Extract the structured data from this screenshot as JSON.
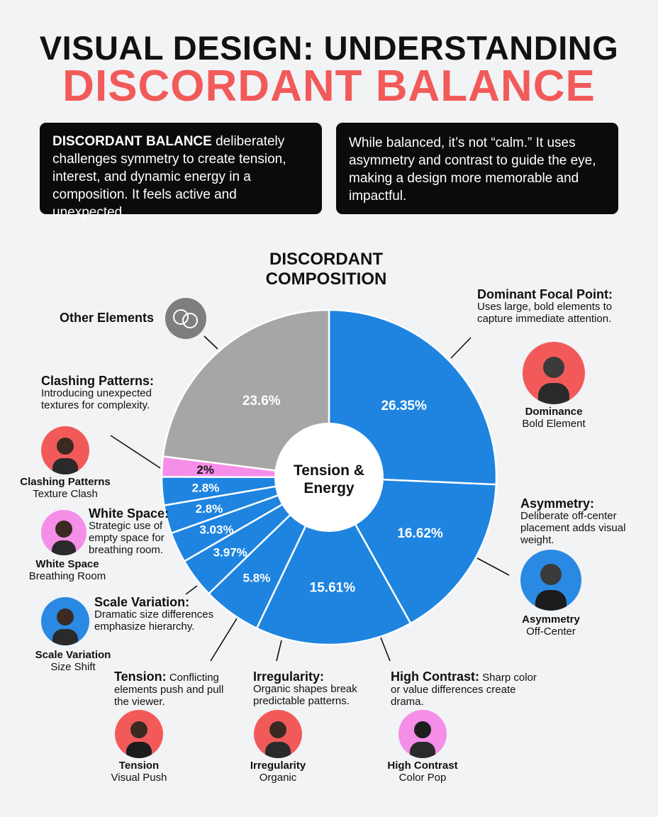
{
  "header": {
    "title_line1": "VISUAL DESIGN: UNDERSTANDING",
    "title_line2": "DISCORDANT BALANCE"
  },
  "intro": {
    "left_bold": "DISCORDANT BALANCE",
    "left_text": " deliberately challenges symmetry to create tension, interest, and dynamic energy in a composition. It feels active and unexpected.",
    "right_text": "While balanced, it’s not “calm.” It uses asymmetry and contrast to guide the eye, making a design more memorable and impactful."
  },
  "colors": {
    "accent_red": "#f25a5a",
    "slice_blue": "#1e84e0",
    "slice_gray": "#a6a6a6",
    "slice_pink": "#f58ee8",
    "avatar_red": "#f25a5a",
    "avatar_blue": "#2a8ae3",
    "avatar_pink": "#f48ee8"
  },
  "chart_data": {
    "type": "pie",
    "title": "DISCORDANT COMPOSITION",
    "center_label_line1": "Tension &",
    "center_label_line2": "Energy",
    "slices": [
      {
        "name": "Dominant Focal Point",
        "value": 26.35,
        "label": "26.35%",
        "color": "#1e84e0"
      },
      {
        "name": "Asymmetry",
        "value": 16.62,
        "label": "16.62%",
        "color": "#1e84e0"
      },
      {
        "name": "High Contrast",
        "value": 15.61,
        "label": "15.61%",
        "color": "#1e84e0"
      },
      {
        "name": "Irregularity",
        "value": 5.8,
        "label": "5.8%",
        "color": "#1e84e0"
      },
      {
        "name": "Tension",
        "value": 3.97,
        "label": "3.97%",
        "color": "#1e84e0"
      },
      {
        "name": "Scale Variation",
        "value": 3.03,
        "label": "3.03%",
        "color": "#1e84e0"
      },
      {
        "name": "White Space",
        "value": 2.8,
        "label": "2.8%",
        "color": "#1e84e0"
      },
      {
        "name": "White Space",
        "value": 2.8,
        "label": "2.8%",
        "color": "#1e84e0"
      },
      {
        "name": "Clashing Patterns",
        "value": 2,
        "label": "2%",
        "color": "#f58ee8"
      },
      {
        "name": "Other Elements",
        "value": 23.6,
        "label": "23.6%",
        "color": "#a6a6a6"
      }
    ]
  },
  "annotations": {
    "other": {
      "head": "Other Elements",
      "icon": "overlapping-circles-icon"
    },
    "dominant": {
      "head": "Dominant Focal Point:",
      "text": "Uses large, bold elements to capture immediate attention.",
      "cap_bold": "Dominance",
      "cap_sub": "Bold Element",
      "icon": "person-avatar-icon"
    },
    "asymmetry": {
      "head": "Asymmetry:",
      "text": "Deliberate off-center placement adds visual weight.",
      "cap_bold": "Asymmetry",
      "cap_sub": "Off-Center",
      "icon": "person-avatar-icon"
    },
    "clashing": {
      "head": "Clashing Patterns:",
      "text": "Introducing unexpected textures for complexity.",
      "cap_bold": "Clashing Patterns",
      "cap_sub": "Texture Clash",
      "icon": "person-avatar-icon"
    },
    "whitespace": {
      "head": "White Space:",
      "text": "Strategic use of empty space for breathing room.",
      "cap_bold": "White Space",
      "cap_sub": "Breathing Room",
      "icon": "person-avatar-icon"
    },
    "scale": {
      "head": "Scale Variation:",
      "text": "Dramatic size differences emphasize hierarchy.",
      "cap_bold": "Scale Variation",
      "cap_sub": "Size Shift",
      "icon": "person-avatar-icon"
    },
    "tension": {
      "head": "Tension:",
      "text": " Conflicting elements push and pull the viewer.",
      "cap_bold": "Tension",
      "cap_sub": "Visual Push",
      "icon": "person-avatar-icon"
    },
    "irregularity": {
      "head": "Irregularity:",
      "text": "Organic shapes break predictable patterns.",
      "cap_bold": "Irregularity",
      "cap_sub": "Organic",
      "icon": "person-avatar-icon"
    },
    "contrast": {
      "head": "High Contrast:",
      "text": " Sharp color or value differences create drama.",
      "cap_bold": "High Contrast",
      "cap_sub": "Color Pop",
      "icon": "person-avatar-icon"
    }
  }
}
